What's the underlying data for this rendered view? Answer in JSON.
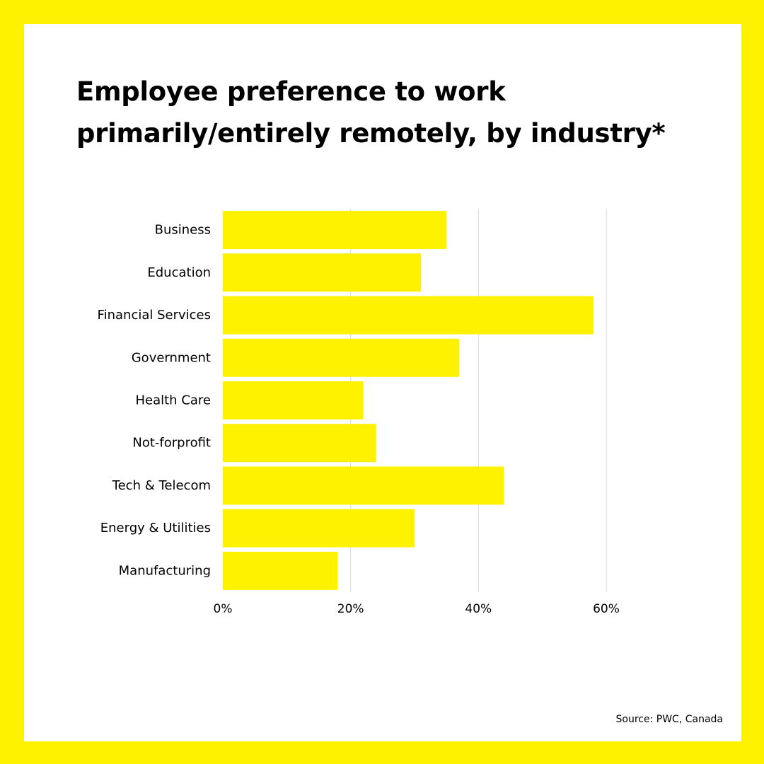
{
  "title_lines": [
    "Employee preference to work",
    "primarily/entirely remotely, by industry*"
  ],
  "source": "Source: PWC, Canada",
  "colors": {
    "frame": "#FFF200",
    "bar": "#FFF200",
    "grid": "#D9D9D9",
    "text": "#000000",
    "card": "#FFFFFF"
  },
  "chart_data": {
    "type": "bar",
    "orientation": "horizontal",
    "title": "Employee preference to work primarily/entirely remotely, by industry*",
    "xlabel": "",
    "ylabel": "",
    "categories": [
      "Business",
      "Education",
      "Financial Services",
      "Government",
      "Health Care",
      "Not-forprofit",
      "Tech & Telecom",
      "Energy & Utilities",
      "Manufacturing"
    ],
    "values": [
      35,
      31,
      58,
      37,
      22,
      24,
      44,
      30,
      18
    ],
    "xlim": [
      0,
      60
    ],
    "xticks": [
      0,
      20,
      40,
      60
    ],
    "xtick_labels": [
      "0%",
      "20%",
      "40%",
      "60%"
    ],
    "grid": "vertical",
    "legend": "none"
  }
}
